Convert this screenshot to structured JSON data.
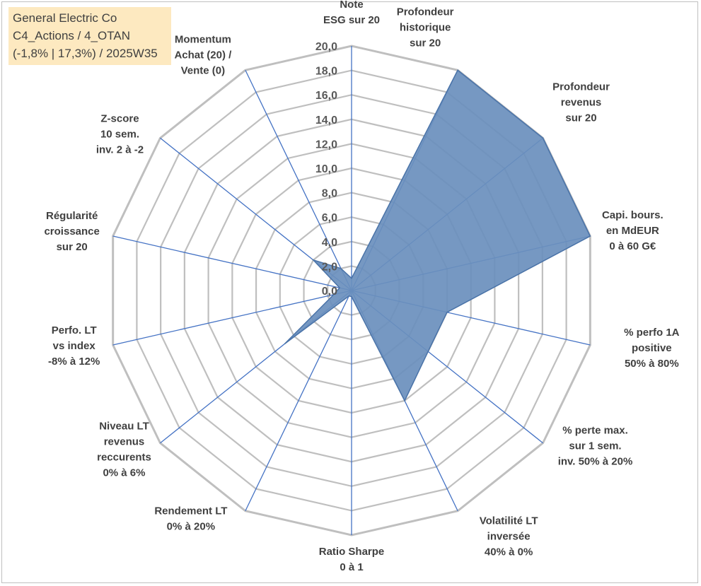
{
  "info": {
    "line1": "General Electric Co",
    "line2": "C4_Actions / 4_OTAN",
    "line3": "(-1,8% | 17,3%) / 2025W35"
  },
  "chart_data": {
    "type": "radar",
    "ylim": [
      0,
      20
    ],
    "tick_values": [
      0,
      2,
      4,
      6,
      8,
      10,
      12,
      14,
      16,
      18,
      20
    ],
    "tick_labels": [
      "0,0",
      "2,0",
      "4,0",
      "6,0",
      "8,0",
      "10,0",
      "12,0",
      "14,0",
      "16,0",
      "18,0",
      "20,0"
    ],
    "grid": true,
    "axes": [
      {
        "label": [
          "Note",
          "ESG sur 20"
        ],
        "value": 1.0
      },
      {
        "label": [
          "Profondeur",
          "historique",
          "sur 20"
        ],
        "value": 20.0
      },
      {
        "label": [
          "Profondeur",
          "revenus",
          "sur 20"
        ],
        "value": 20.0
      },
      {
        "label": [
          "Capi. bours.",
          "en MdEUR",
          "0 à 60 G€"
        ],
        "value": 20.0
      },
      {
        "label": [
          "% perfo 1A",
          "positive",
          "50% à 80%"
        ],
        "value": 8.0
      },
      {
        "label": [
          "% perte max.",
          "sur 1 sem.",
          "inv. 50% à 20%"
        ],
        "value": 8.0
      },
      {
        "label": [
          "Volatilité LT",
          "inversée",
          "40% à 0%"
        ],
        "value": 10.0
      },
      {
        "label": [
          "Ratio Sharpe",
          "0 à 1"
        ],
        "value": 0.5
      },
      {
        "label": [
          "Rendement LT",
          "0% à 20%"
        ],
        "value": 0.5
      },
      {
        "label": [
          "Niveau LT",
          "revenus",
          "reccurents",
          "0% à 6%"
        ],
        "value": 7.0
      },
      {
        "label": [
          "Perfo. LT",
          "vs index",
          "-8% à 12%"
        ],
        "value": 1.5
      },
      {
        "label": [
          "Régularité",
          "croissance",
          "sur 20"
        ],
        "value": 1.0
      },
      {
        "label": [
          "Z-score",
          "10 sem.",
          "inv. 2 à -2"
        ],
        "value": 4.0
      },
      {
        "label": [
          "Momentum",
          "Achat (20) /",
          "Vente (0)"
        ],
        "value": 2.0
      }
    ],
    "colors": {
      "grid": "#bfbfbf",
      "spoke": "#4472c4",
      "fill": "#6a8fbd",
      "stroke": "#4a73a8"
    }
  }
}
